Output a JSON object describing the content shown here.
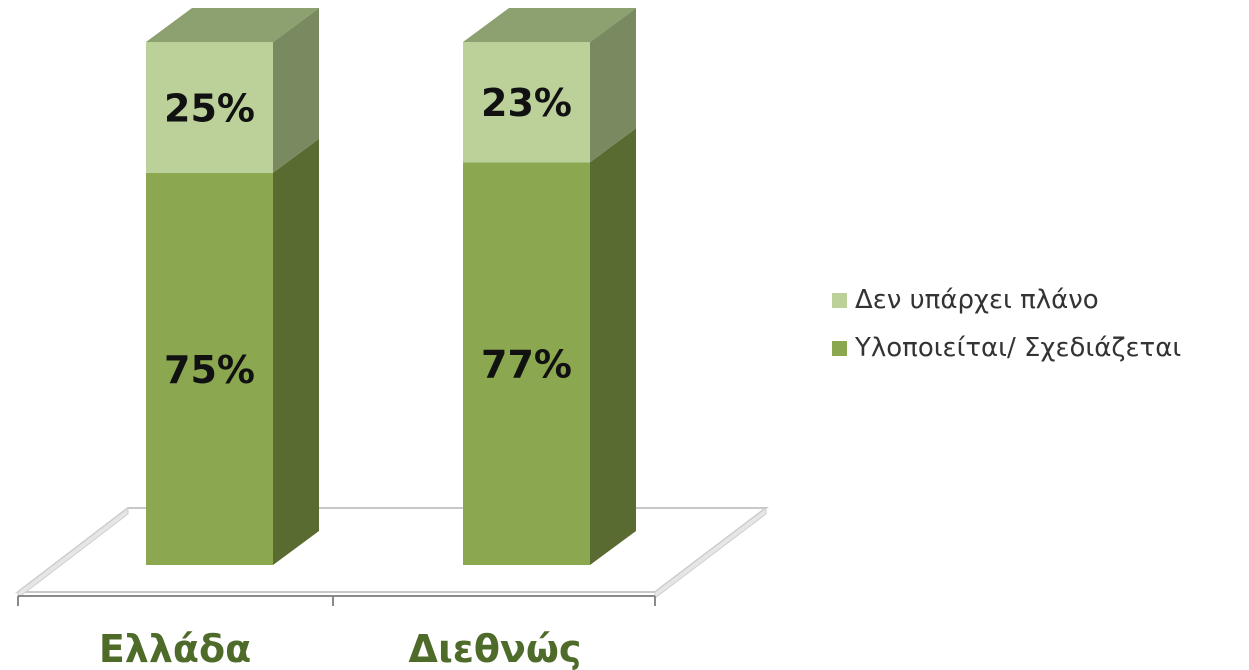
{
  "chart_data": {
    "type": "bar",
    "stacked": true,
    "three_d": true,
    "categories": [
      "Ελλάδα",
      "Διεθνώς"
    ],
    "series": [
      {
        "name": "Υλοποιείται/ Σχεδιάζεται",
        "values": [
          75,
          77
        ],
        "labels": [
          "75%",
          "77%"
        ],
        "color": "#8ba74f",
        "side_color": "#5a6b32",
        "top_color": "#7d9558"
      },
      {
        "name": "Δεν υπάρχει πλάνο",
        "values": [
          25,
          23
        ],
        "labels": [
          "25%",
          "23%"
        ],
        "color": "#bcd09a",
        "side_color": "#7a8a60",
        "top_color": "#8da070"
      }
    ],
    "ylim": [
      0,
      100
    ],
    "title": "",
    "xlabel": "",
    "ylabel": "",
    "grid": false,
    "legend_position": "right"
  },
  "legend": {
    "items": [
      {
        "label": "Δεν υπάρχει πλάνο",
        "color": "#bcd09a"
      },
      {
        "label": "Υλοποιείται/ Σχεδιάζεται",
        "color": "#8ba74f"
      }
    ]
  }
}
